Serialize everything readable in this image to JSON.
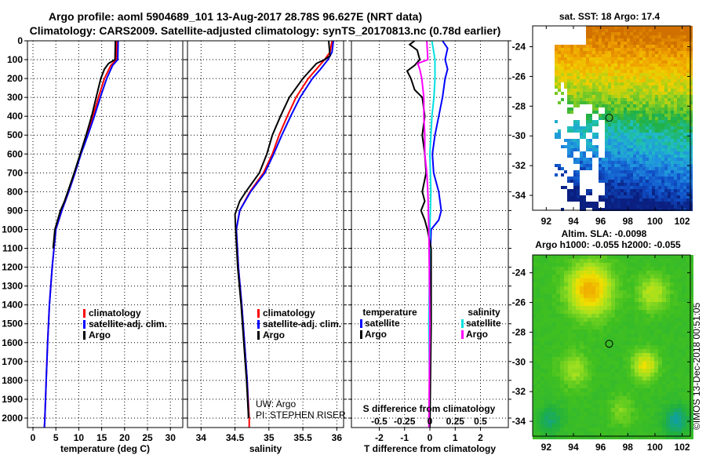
{
  "titles": {
    "line1": "Argo profile: aoml 5904689_101 13-Aug-2017 28.78S 96.627E (NRT data)",
    "line2": "Climatology: CARS2009. Satellite-adjusted climatology: synTS_20170813.nc (0.78d earlier)"
  },
  "colors": {
    "climatology": "#ff0000",
    "satellite": "#0000ff",
    "argo": "#000000",
    "sal_satellite": "#00e0e0",
    "sal_argo": "#ff00ff"
  },
  "chart_data": [
    {
      "type": "line",
      "name": "temperature-profile",
      "xlabel": "temperature (deg C)",
      "xlim": [
        -1.2,
        32.7
      ],
      "xticks": [
        "0",
        "5",
        "10",
        "15",
        "20",
        "25",
        "30"
      ],
      "xtick_values": [
        0,
        5,
        10,
        15,
        20,
        25,
        30
      ],
      "ylim": [
        0,
        2050
      ],
      "yticks": [
        "0",
        "100",
        "200",
        "300",
        "400",
        "500",
        "600",
        "700",
        "800",
        "900",
        "1000",
        "1100",
        "1200",
        "1300",
        "1400",
        "1500",
        "1600",
        "1700",
        "1800",
        "1900",
        "2000"
      ],
      "legend": [
        "climatology",
        "satellite-adj. clim.",
        "Argo"
      ],
      "series": [
        {
          "name": "climatology",
          "color": "#ff0000",
          "points": [
            [
              0,
              18.3
            ],
            [
              100,
              18.2
            ],
            [
              130,
              17
            ],
            [
              200,
              15.6
            ],
            [
              300,
              14.3
            ],
            [
              400,
              13.1
            ],
            [
              500,
              11.8
            ],
            [
              600,
              10.4
            ],
            [
              700,
              9.2
            ],
            [
              800,
              7.8
            ],
            [
              900,
              6.3
            ],
            [
              1000,
              5
            ],
            [
              1200,
              4.2
            ],
            [
              1400,
              3.6
            ],
            [
              1600,
              3.2
            ],
            [
              1800,
              2.9
            ],
            [
              2000,
              2.6
            ],
            [
              2050,
              2.5
            ]
          ]
        },
        {
          "name": "satellite-adj. clim.",
          "color": "#0000ff",
          "points": [
            [
              0,
              18.6
            ],
            [
              100,
              18.5
            ],
            [
              130,
              17.4
            ],
            [
              200,
              16.1
            ],
            [
              300,
              14.7
            ],
            [
              400,
              13.4
            ],
            [
              500,
              12
            ],
            [
              600,
              10.5
            ],
            [
              700,
              9.2
            ],
            [
              800,
              7.8
            ],
            [
              900,
              6.3
            ],
            [
              1000,
              5
            ],
            [
              1200,
              4.2
            ],
            [
              1400,
              3.6
            ],
            [
              1600,
              3.2
            ],
            [
              1800,
              2.9
            ],
            [
              2000,
              2.6
            ],
            [
              2050,
              2.5
            ]
          ]
        },
        {
          "name": "Argo",
          "color": "#000000",
          "points": [
            [
              0,
              18
            ],
            [
              100,
              17.9
            ],
            [
              120,
              16.5
            ],
            [
              150,
              15.6
            ],
            [
              200,
              14.8
            ],
            [
              300,
              13.8
            ],
            [
              400,
              12.8
            ],
            [
              500,
              11.6
            ],
            [
              600,
              10.3
            ],
            [
              700,
              9
            ],
            [
              800,
              7.6
            ],
            [
              850,
              6.9
            ],
            [
              900,
              6
            ],
            [
              1000,
              4.8
            ],
            [
              1100,
              4.4
            ]
          ]
        }
      ]
    },
    {
      "type": "line",
      "name": "salinity-profile",
      "xlabel": "salinity",
      "xlim": [
        33.8,
        36.1
      ],
      "xticks": [
        "34",
        "34.5",
        "35",
        "35.5",
        "36"
      ],
      "xtick_values": [
        34,
        34.5,
        35,
        35.5,
        36
      ],
      "ylim": [
        0,
        2050
      ],
      "legend": [
        "climatology",
        "satellite-adj. clim.",
        "Argo"
      ],
      "annotation": [
        "UW: Argo",
        "PI: STEPHEN RISER"
      ],
      "series": [
        {
          "name": "climatology",
          "color": "#ff0000",
          "points": [
            [
              0,
              35.93
            ],
            [
              60,
              35.9
            ],
            [
              100,
              35.82
            ],
            [
              150,
              35.7
            ],
            [
              200,
              35.58
            ],
            [
              300,
              35.4
            ],
            [
              400,
              35.27
            ],
            [
              500,
              35.15
            ],
            [
              600,
              35.05
            ],
            [
              700,
              34.92
            ],
            [
              800,
              34.72
            ],
            [
              900,
              34.57
            ],
            [
              1000,
              34.52
            ],
            [
              1200,
              34.55
            ],
            [
              1400,
              34.6
            ],
            [
              1600,
              34.64
            ],
            [
              1800,
              34.68
            ],
            [
              2000,
              34.71
            ],
            [
              2050,
              34.71
            ]
          ]
        },
        {
          "name": "satellite-adj. clim.",
          "color": "#0000ff",
          "points": [
            [
              0,
              35.95
            ],
            [
              60,
              35.93
            ],
            [
              100,
              35.87
            ],
            [
              150,
              35.76
            ],
            [
              200,
              35.64
            ],
            [
              300,
              35.46
            ],
            [
              400,
              35.32
            ],
            [
              500,
              35.19
            ],
            [
              600,
              35.07
            ],
            [
              700,
              34.94
            ],
            [
              800,
              34.73
            ],
            [
              900,
              34.57
            ],
            [
              1000,
              34.52
            ],
            [
              1200,
              34.55
            ],
            [
              1400,
              34.6
            ],
            [
              1600,
              34.64
            ],
            [
              1800,
              34.68
            ],
            [
              2000,
              34.7
            ]
          ]
        },
        {
          "name": "Argo",
          "color": "#000000",
          "points": [
            [
              0,
              35.88
            ],
            [
              80,
              35.9
            ],
            [
              100,
              35.82
            ],
            [
              120,
              35.7
            ],
            [
              160,
              35.6
            ],
            [
              200,
              35.5
            ],
            [
              300,
              35.3
            ],
            [
              400,
              35.17
            ],
            [
              500,
              35.05
            ],
            [
              600,
              34.97
            ],
            [
              700,
              34.86
            ],
            [
              800,
              34.66
            ],
            [
              850,
              34.57
            ],
            [
              920,
              34.5
            ],
            [
              1000,
              34.51
            ],
            [
              1200,
              34.54
            ],
            [
              1400,
              34.59
            ],
            [
              1600,
              34.63
            ],
            [
              1800,
              34.67
            ],
            [
              2000,
              34.7
            ]
          ]
        }
      ]
    },
    {
      "type": "line",
      "name": "difference-profile",
      "xlabel": "T difference from climatology",
      "xlabel2": "S difference from climatology",
      "xlim": [
        -3.1,
        3.1
      ],
      "xticks": [
        "-2",
        "-1",
        "0",
        "1",
        "2"
      ],
      "xtick_values": [
        -2,
        -1,
        0,
        1,
        2
      ],
      "xticks2": [
        "-0.5",
        "-0.25",
        "0",
        "0.25",
        "0.5"
      ],
      "xtick2_values": [
        -0.5,
        -0.25,
        0,
        0.25,
        0.5
      ],
      "ylim": [
        0,
        2050
      ],
      "legend_temperature": {
        "title": "temperature",
        "items": [
          "satellite",
          "Argo"
        ]
      },
      "legend_salinity": {
        "title": "salinity",
        "items": [
          "satellite",
          "Argo"
        ]
      },
      "series": [
        {
          "name": "T satellite",
          "color": "#0000ff",
          "points": [
            [
              0,
              0.5
            ],
            [
              40,
              0.7
            ],
            [
              100,
              0.6
            ],
            [
              150,
              0.7
            ],
            [
              200,
              0.6
            ],
            [
              300,
              0.5
            ],
            [
              400,
              0.35
            ],
            [
              500,
              0.2
            ],
            [
              600,
              0.1
            ],
            [
              700,
              0.15
            ],
            [
              800,
              0.35
            ],
            [
              900,
              0.45
            ],
            [
              950,
              0.35
            ],
            [
              1000,
              0.05
            ],
            [
              1200,
              0
            ],
            [
              2050,
              0
            ]
          ]
        },
        {
          "name": "S satellite",
          "color": "#00e0e0",
          "points": [
            [
              0,
              0.02
            ],
            [
              100,
              0.05
            ],
            [
              200,
              0.05
            ],
            [
              300,
              0.04
            ],
            [
              400,
              0.02
            ],
            [
              600,
              0
            ],
            [
              800,
              0.01
            ],
            [
              1000,
              0
            ],
            [
              1500,
              -0.01
            ],
            [
              2050,
              0
            ]
          ]
        },
        {
          "name": "T Argo",
          "color": "#000000",
          "points": [
            [
              0,
              -0.6
            ],
            [
              20,
              -0.8
            ],
            [
              50,
              -0.5
            ],
            [
              100,
              -0.4
            ],
            [
              130,
              -0.6
            ],
            [
              160,
              -0.9
            ],
            [
              200,
              -0.75
            ],
            [
              260,
              -0.6
            ],
            [
              300,
              -0.3
            ],
            [
              400,
              -0.2
            ],
            [
              500,
              -0.3
            ],
            [
              600,
              -0.2
            ],
            [
              700,
              -0.15
            ],
            [
              800,
              -0.3
            ],
            [
              850,
              -0.2
            ],
            [
              900,
              -0.35
            ],
            [
              950,
              -0.2
            ],
            [
              1000,
              -0.1
            ],
            [
              1100,
              0.05
            ],
            [
              1500,
              0.05
            ],
            [
              2050,
              0
            ]
          ]
        },
        {
          "name": "S Argo",
          "color": "#ff00ff",
          "points": [
            [
              0,
              -0.03
            ],
            [
              100,
              -0.02
            ],
            [
              120,
              -0.12
            ],
            [
              150,
              -0.1
            ],
            [
              200,
              -0.08
            ],
            [
              300,
              -0.06
            ],
            [
              400,
              -0.06
            ],
            [
              500,
              -0.05
            ],
            [
              600,
              -0.05
            ],
            [
              700,
              -0.03
            ],
            [
              800,
              -0.02
            ],
            [
              1000,
              -0.01
            ],
            [
              1500,
              0
            ],
            [
              2050,
              -0.01
            ]
          ]
        }
      ]
    },
    {
      "type": "heatmap",
      "name": "sst-map",
      "title": "sat. SST: 18 Argo: 17.4",
      "xlim": [
        91,
        102.6
      ],
      "ylim": [
        -35,
        -22.6
      ],
      "xticks": [
        "92",
        "94",
        "96",
        "98",
        "100",
        "102"
      ],
      "xtick_values": [
        92,
        94,
        96,
        98,
        100,
        102
      ],
      "yticks": [
        "-24",
        "-26",
        "-28",
        "-30",
        "-32",
        "-34"
      ],
      "ytick_values": [
        -24,
        -26,
        -28,
        -30,
        -32,
        -34
      ],
      "marker": [
        96.63,
        -28.78
      ]
    },
    {
      "type": "heatmap",
      "name": "sla-map",
      "title": "Altim. SLA: -0.0098",
      "subtitle": "Argo h1000: -0.055 h2000: -0.055",
      "xlim": [
        91,
        102.6
      ],
      "ylim": [
        -35,
        -22.8
      ],
      "xticks": [
        "92",
        "94",
        "96",
        "98",
        "100",
        "102"
      ],
      "xtick_values": [
        92,
        94,
        96,
        98,
        100,
        102
      ],
      "yticks": [
        "-24",
        "-26",
        "-28",
        "-30",
        "-32",
        "-34"
      ],
      "ytick_values": [
        -24,
        -26,
        -28,
        -30,
        -32,
        -34
      ],
      "marker": [
        96.63,
        -28.78
      ]
    }
  ],
  "credit": "©IMOS 13-Dec-2018 00:51:05"
}
